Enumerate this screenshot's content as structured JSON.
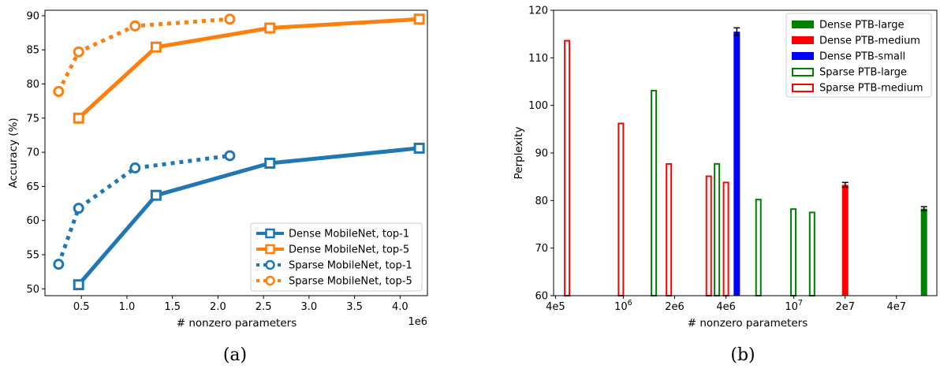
{
  "chart_data": [
    {
      "type": "line",
      "panel_caption": "(a)",
      "xlabel": "# nonzero parameters",
      "ylabel": "Accuracy (%)",
      "x_offset_text": "1e6",
      "xlim": [
        0.1,
        4.3
      ],
      "ylim": [
        49,
        90.8
      ],
      "xticks": [
        0.5,
        1.0,
        1.5,
        2.0,
        2.5,
        3.0,
        3.5,
        4.0
      ],
      "xtick_labels": [
        "0.5",
        "1.0",
        "1.5",
        "2.0",
        "2.5",
        "3.0",
        "3.5",
        "4.0"
      ],
      "yticks": [
        50,
        55,
        60,
        65,
        70,
        75,
        80,
        85,
        90
      ],
      "ytick_labels": [
        "50",
        "55",
        "60",
        "65",
        "70",
        "75",
        "80",
        "85",
        "90"
      ],
      "legend_position": "lower-right",
      "series": [
        {
          "name": "Dense MobileNet, top-1",
          "color": "#1f77b4",
          "style": "solid",
          "marker": "square",
          "x": [
            0.47,
            1.32,
            2.57,
            4.21
          ],
          "y": [
            50.6,
            63.7,
            68.4,
            70.6
          ]
        },
        {
          "name": "Dense MobileNet, top-5",
          "color": "#ff7f0e",
          "style": "solid",
          "marker": "square",
          "x": [
            0.47,
            1.32,
            2.57,
            4.21
          ],
          "y": [
            75.0,
            85.4,
            88.2,
            89.5
          ]
        },
        {
          "name": "Sparse MobileNet, top-1",
          "color": "#1f77b4",
          "style": "dotted",
          "marker": "circle",
          "x": [
            0.25,
            0.47,
            1.09,
            2.13
          ],
          "y": [
            53.6,
            61.8,
            67.7,
            69.5
          ]
        },
        {
          "name": "Sparse MobileNet, top-5",
          "color": "#ff7f0e",
          "style": "dotted",
          "marker": "circle",
          "x": [
            0.25,
            0.47,
            1.09,
            2.13
          ],
          "y": [
            78.9,
            84.7,
            88.5,
            89.5
          ]
        }
      ]
    },
    {
      "type": "bar",
      "panel_caption": "(b)",
      "xlabel": "# nonzero parameters",
      "ylabel": "Perplexity",
      "x_scale": "log",
      "xlim": [
        390000,
        69000000
      ],
      "ylim": [
        60,
        120
      ],
      "xticks": [
        400000,
        1000000,
        2000000,
        4000000,
        10000000,
        20000000,
        40000000
      ],
      "xtick_labels": [
        "4e5",
        "10^6",
        "2e6",
        "4e6",
        "10^7",
        "2e7",
        "4e7"
      ],
      "yticks": [
        60,
        70,
        80,
        90,
        100,
        110,
        120
      ],
      "ytick_labels": [
        "60",
        "70",
        "80",
        "90",
        "100",
        "110",
        "120"
      ],
      "legend_position": "upper-right",
      "series": [
        {
          "name": "Dense PTB-large",
          "color": "#008000",
          "fill": "solid",
          "x": [
            58000000
          ],
          "y": [
            78.3
          ],
          "error": [
            0.4
          ]
        },
        {
          "name": "Dense PTB-medium",
          "color": "#ff0000",
          "fill": "solid",
          "x": [
            20000000
          ],
          "y": [
            83.3
          ],
          "error": [
            0.5
          ]
        },
        {
          "name": "Dense PTB-small",
          "color": "#0000ff",
          "fill": "solid",
          "x": [
            4630000
          ],
          "y": [
            115.5
          ],
          "error": [
            0.8
          ]
        },
        {
          "name": "Sparse PTB-large",
          "color": "#008000",
          "fill": "outline",
          "x": [
            1510000,
            3540000,
            6200000,
            9940000,
            12800000
          ],
          "y": [
            103.1,
            87.7,
            80.2,
            78.2,
            77.5
          ]
        },
        {
          "name": "Sparse PTB-medium",
          "color": "#ff0000",
          "fill": "outline",
          "x": [
            468000,
            968000,
            1850000,
            3170000,
            4000000
          ],
          "y": [
            113.6,
            96.2,
            87.7,
            85.1,
            83.8
          ]
        }
      ]
    }
  ]
}
